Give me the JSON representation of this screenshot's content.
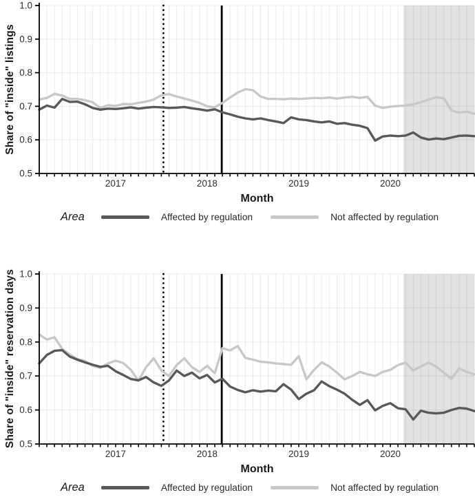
{
  "page": {
    "background": "#ffffff",
    "axis_color": "#000000",
    "tick_label_color": "#303030",
    "grid_color_alpha": "rgba(0,0,0,0.075)",
    "shade_color": "#e2e2e2"
  },
  "chart_data": [
    {
      "type": "line",
      "title": "",
      "ylabel": "Share of \"inside\" listings",
      "xlabel": "Month",
      "ylim": [
        0.5,
        1.0
      ],
      "yticks": [
        "1.0",
        "0.9",
        "0.8",
        "0.7",
        "0.6",
        "0.5"
      ],
      "ytick_values": [
        1.0,
        0.9,
        0.8,
        0.7,
        0.6,
        0.5
      ],
      "x_start": "2016-03",
      "x_end": "2020-12",
      "x_tick_years": [
        "2017",
        "2018",
        "2019",
        "2020"
      ],
      "grid": true,
      "legend_position": "bottom",
      "legend_title": "Area",
      "annotations": {
        "dotted_vline_month": "2017-07",
        "solid_vline_month": "2018-03",
        "shaded_region_start": "2020-03",
        "shaded_region_end": "2020-12"
      },
      "series": [
        {
          "name": "Affected by regulation",
          "color": "#595959",
          "values": [
            0.69,
            0.702,
            0.696,
            0.722,
            0.713,
            0.714,
            0.706,
            0.695,
            0.69,
            0.693,
            0.692,
            0.694,
            0.697,
            0.693,
            0.696,
            0.698,
            0.697,
            0.695,
            0.696,
            0.698,
            0.694,
            0.691,
            0.687,
            0.691,
            0.682,
            0.676,
            0.669,
            0.664,
            0.661,
            0.664,
            0.659,
            0.655,
            0.65,
            0.667,
            0.661,
            0.659,
            0.655,
            0.652,
            0.655,
            0.648,
            0.65,
            0.645,
            0.642,
            0.635,
            0.598,
            0.61,
            0.613,
            0.611,
            0.613,
            0.622,
            0.607,
            0.601,
            0.604,
            0.602,
            0.607,
            0.612,
            0.613,
            0.611
          ]
        },
        {
          "name": "Not affected by regulation",
          "color": "#c8c8c8",
          "values": [
            0.72,
            0.725,
            0.737,
            0.732,
            0.722,
            0.722,
            0.718,
            0.712,
            0.695,
            0.703,
            0.701,
            0.707,
            0.706,
            0.71,
            0.714,
            0.72,
            0.733,
            0.736,
            0.729,
            0.723,
            0.717,
            0.71,
            0.7,
            0.697,
            0.71,
            0.726,
            0.741,
            0.751,
            0.748,
            0.729,
            0.722,
            0.722,
            0.721,
            0.723,
            0.722,
            0.723,
            0.725,
            0.724,
            0.726,
            0.723,
            0.726,
            0.728,
            0.725,
            0.728,
            0.702,
            0.695,
            0.699,
            0.701,
            0.702,
            0.706,
            0.712,
            0.72,
            0.727,
            0.724,
            0.688,
            0.681,
            0.684,
            0.678
          ]
        }
      ]
    },
    {
      "type": "line",
      "title": "",
      "ylabel": "Share of \"inside\" reservation days",
      "xlabel": "Month",
      "ylim": [
        0.5,
        1.0
      ],
      "yticks": [
        "1.0",
        "0.9",
        "0.8",
        "0.7",
        "0.6",
        "0.5"
      ],
      "ytick_values": [
        1.0,
        0.9,
        0.8,
        0.7,
        0.6,
        0.5
      ],
      "x_start": "2016-03",
      "x_end": "2020-12",
      "x_tick_years": [
        "2017",
        "2018",
        "2019",
        "2020"
      ],
      "grid": true,
      "legend_position": "bottom",
      "legend_title": "Area",
      "annotations": {
        "dotted_vline_month": "2017-07",
        "solid_vline_month": "2018-03",
        "shaded_region_start": "2020-03",
        "shaded_region_end": "2020-12"
      },
      "series": [
        {
          "name": "Affected by regulation",
          "color": "#595959",
          "values": [
            0.737,
            0.762,
            0.774,
            0.776,
            0.757,
            0.748,
            0.74,
            0.733,
            0.727,
            0.73,
            0.714,
            0.703,
            0.691,
            0.687,
            0.697,
            0.681,
            0.671,
            0.687,
            0.716,
            0.7,
            0.71,
            0.693,
            0.703,
            0.681,
            0.692,
            0.669,
            0.659,
            0.652,
            0.658,
            0.654,
            0.657,
            0.655,
            0.676,
            0.66,
            0.632,
            0.648,
            0.658,
            0.684,
            0.67,
            0.66,
            0.648,
            0.63,
            0.615,
            0.629,
            0.599,
            0.612,
            0.62,
            0.605,
            0.602,
            0.572,
            0.598,
            0.592,
            0.59,
            0.592,
            0.6,
            0.606,
            0.604,
            0.597
          ]
        },
        {
          "name": "Not affected by regulation",
          "color": "#c8c8c8",
          "values": [
            0.822,
            0.807,
            0.814,
            0.78,
            0.763,
            0.75,
            0.744,
            0.73,
            0.724,
            0.737,
            0.745,
            0.738,
            0.718,
            0.686,
            0.726,
            0.752,
            0.716,
            0.7,
            0.732,
            0.752,
            0.726,
            0.712,
            0.73,
            0.708,
            0.782,
            0.775,
            0.788,
            0.753,
            0.748,
            0.742,
            0.74,
            0.737,
            0.735,
            0.733,
            0.758,
            0.69,
            0.718,
            0.74,
            0.728,
            0.71,
            0.69,
            0.7,
            0.712,
            0.705,
            0.7,
            0.712,
            0.718,
            0.732,
            0.739,
            0.716,
            0.728,
            0.739,
            0.728,
            0.71,
            0.692,
            0.722,
            0.712,
            0.705
          ]
        }
      ]
    }
  ]
}
